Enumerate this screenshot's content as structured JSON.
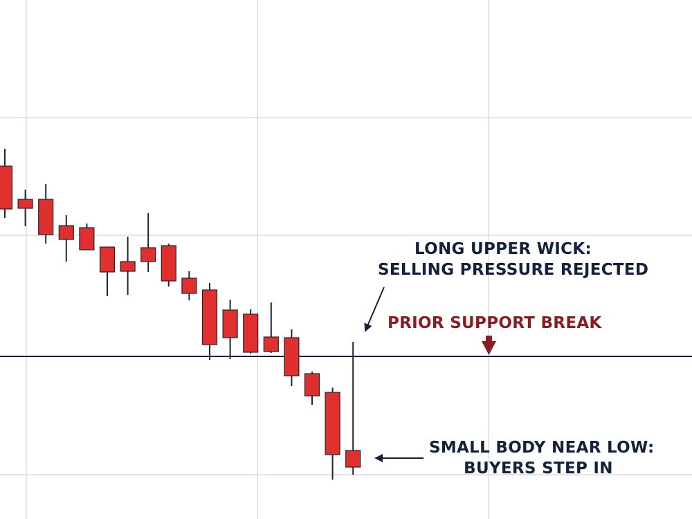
{
  "colors": {
    "background": "#ffffff",
    "grid": "#d9dde3",
    "candle_fill": "#e02f2f",
    "candle_stroke": "#1f2630",
    "wick": "#1f2630",
    "support_line": "#14213d",
    "annotation_text": "#14213d",
    "support_text": "#8a1c22",
    "arrow": "#14213d",
    "support_arrow": "#8a1c22"
  },
  "annotations": {
    "wick_line1": "LONG UPPER WICK:",
    "wick_line2": "SELLING PRESSURE REJECTED",
    "support": "PRIOR SUPPORT BREAK",
    "body_line1": "SMALL BODY NEAR LOW:",
    "body_line2": "BUYERS STEP IN"
  },
  "chart_data": {
    "type": "candlestick",
    "title": "",
    "xlabel": "",
    "ylabel": "",
    "grid": true,
    "ylim": [
      0,
      750
    ],
    "support_level": 235.0,
    "candles": [
      {
        "open": 510.0,
        "high": 535.0,
        "low": 435.0,
        "close": 448.0
      },
      {
        "open": 462.0,
        "high": 476.0,
        "low": 423.0,
        "close": 449.0
      },
      {
        "open": 462.0,
        "high": 484.0,
        "low": 398.0,
        "close": 411.0
      },
      {
        "open": 424.0,
        "high": 439.0,
        "low": 372.0,
        "close": 404.0
      },
      {
        "open": 421.0,
        "high": 427.0,
        "low": 390.0,
        "close": 389.0
      },
      {
        "open": 393.0,
        "high": 393.0,
        "low": 322.0,
        "close": 357.0
      },
      {
        "open": 372.0,
        "high": 408.0,
        "low": 324.0,
        "close": 358.0
      },
      {
        "open": 392.0,
        "high": 442.0,
        "low": 357.0,
        "close": 372.0
      },
      {
        "open": 395.0,
        "high": 398.0,
        "low": 336.0,
        "close": 344.0
      },
      {
        "open": 348.0,
        "high": 358.0,
        "low": 316.0,
        "close": 326.0
      },
      {
        "open": 331.0,
        "high": 341.0,
        "low": 230.0,
        "close": 252.0
      },
      {
        "open": 302.0,
        "high": 317.0,
        "low": 231.0,
        "close": 262.0
      },
      {
        "open": 296.0,
        "high": 303.0,
        "low": 239.0,
        "close": 241.0
      },
      {
        "open": 263.0,
        "high": 313.0,
        "low": 240.0,
        "close": 242.0
      },
      {
        "open": 262.0,
        "high": 274.0,
        "low": 192.0,
        "close": 207.0
      },
      {
        "open": 210.0,
        "high": 213.0,
        "low": 165.0,
        "close": 178.0
      },
      {
        "open": 183.0,
        "high": 190.0,
        "low": 57.0,
        "close": 93.0
      },
      {
        "open": 99.0,
        "high": 256.0,
        "low": 64.0,
        "close": 75.0
      }
    ]
  }
}
